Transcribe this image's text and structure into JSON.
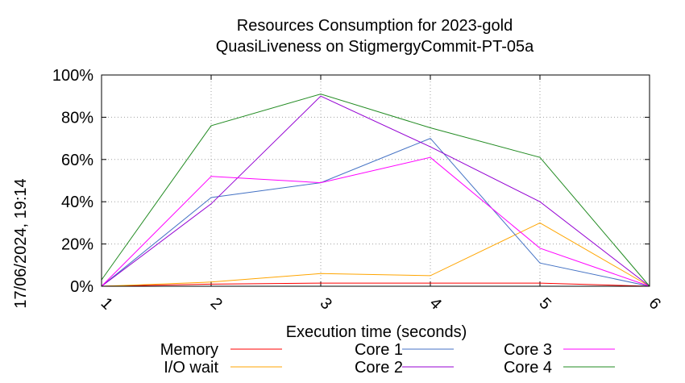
{
  "chart_data": {
    "type": "line",
    "title": "Resources Consumption for 2023-gold",
    "subtitle": "QuasiLiveness on StigmergyCommit-PT-05a",
    "xlabel": "Execution time (seconds)",
    "ylabel": "",
    "x": [
      1,
      2,
      3,
      4,
      5,
      6
    ],
    "xlim": [
      1,
      6
    ],
    "ylim": [
      0,
      100
    ],
    "x_ticks": [
      "1",
      "2",
      "3",
      "4",
      "5",
      "6"
    ],
    "y_ticks": [
      "0%",
      "20%",
      "40%",
      "60%",
      "80%",
      "100%"
    ],
    "grid": true,
    "legend_position": "bottom",
    "series": [
      {
        "name": "Memory",
        "color": "#ff0000",
        "values": [
          0,
          1,
          1.5,
          1.5,
          1.5,
          0
        ]
      },
      {
        "name": "I/O wait",
        "color": "#ffa500",
        "values": [
          0,
          2,
          6,
          5,
          30,
          0
        ]
      },
      {
        "name": "Core 1",
        "color": "#4472c4",
        "values": [
          0,
          42,
          49,
          70,
          11,
          0
        ]
      },
      {
        "name": "Core 2",
        "color": "#9400d3",
        "values": [
          0,
          39,
          90,
          66,
          40,
          0
        ]
      },
      {
        "name": "Core 3",
        "color": "#ff00ff",
        "values": [
          0,
          52,
          49,
          61,
          18,
          0
        ]
      },
      {
        "name": "Core 4",
        "color": "#228b22",
        "values": [
          3,
          76,
          91,
          75,
          61,
          0
        ]
      }
    ]
  },
  "timestamp": "17/06/2024, 19:14"
}
